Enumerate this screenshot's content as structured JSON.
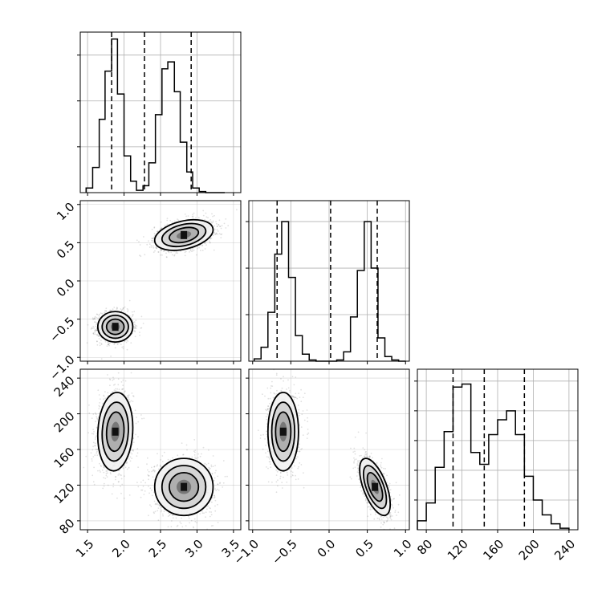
{
  "chart_data": {
    "type": "corner",
    "parameters": [
      {
        "range": [
          1.4,
          3.6
        ],
        "ticks": [
          1.5,
          2.0,
          2.5,
          3.0,
          3.5
        ],
        "tick_labels": [
          "1.5",
          "2.0",
          "2.5",
          "3.0",
          "3.5"
        ],
        "quantiles": [
          1.83,
          2.28,
          2.92
        ],
        "histogram": {
          "edges": [
            1.48,
            1.57,
            1.66,
            1.74,
            1.83,
            1.91,
            2.0,
            2.09,
            2.17,
            2.26,
            2.34,
            2.43,
            2.52,
            2.6,
            2.69,
            2.77,
            2.86,
            2.94,
            3.03,
            3.12,
            3.2,
            3.29,
            3.38
          ],
          "counts": [
            0.2,
            1.1,
            3.2,
            5.3,
            6.7,
            4.3,
            1.6,
            0.5,
            0.1,
            0.3,
            1.3,
            3.4,
            5.4,
            5.7,
            4.4,
            2.2,
            0.9,
            0.2,
            0.05,
            0.0,
            0.0,
            0.0
          ]
        },
        "hist_ylim": [
          0,
          7.0
        ],
        "hist_ticks": [
          2.0,
          4.0,
          6.0
        ]
      },
      {
        "range": [
          -1.05,
          1.05
        ],
        "ticks": [
          -1.0,
          -0.5,
          0.0,
          0.5,
          1.0
        ],
        "tick_labels": [
          "−1.0",
          "−0.5",
          "0.0",
          "0.5",
          "1.0"
        ],
        "quantiles": [
          -0.68,
          0.02,
          0.63
        ],
        "histogram": {
          "edges": [
            -0.98,
            -0.89,
            -0.8,
            -0.71,
            -0.62,
            -0.53,
            -0.44,
            -0.35,
            -0.26,
            -0.17,
            -0.08,
            0.01,
            0.1,
            0.19,
            0.28,
            0.37,
            0.46,
            0.55,
            0.64,
            0.73,
            0.82,
            0.91,
            1.0
          ],
          "counts": [
            0.1,
            0.6,
            2.1,
            4.6,
            6.0,
            3.6,
            1.1,
            0.3,
            0.05,
            0.0,
            0.0,
            0.0,
            0.05,
            0.4,
            1.9,
            3.9,
            6.0,
            4.0,
            1.0,
            0.2,
            0.05,
            0.0
          ]
        },
        "hist_ylim": [
          0,
          6.9
        ],
        "hist_ticks": [
          2.0,
          4.0,
          6.0
        ]
      },
      {
        "range": [
          70,
          250
        ],
        "ticks": [
          80,
          120,
          160,
          200,
          240
        ],
        "tick_labels": [
          "80",
          "120",
          "160",
          "200",
          "240"
        ],
        "quantiles": [
          110,
          145,
          190
        ],
        "histogram": {
          "edges": [
            70,
            80,
            90,
            100,
            110,
            120,
            130,
            140,
            150,
            160,
            170,
            180,
            190,
            200,
            210,
            220,
            230,
            240
          ],
          "counts": [
            0.3,
            0.9,
            2.1,
            3.3,
            4.8,
            4.9,
            2.6,
            2.2,
            3.2,
            3.7,
            4.0,
            3.2,
            1.8,
            1.0,
            0.5,
            0.2,
            0.05
          ]
        },
        "hist_ylim": [
          0,
          5.4
        ],
        "hist_ticks": [
          1.0,
          2.0,
          3.0,
          4.0,
          5.0
        ]
      }
    ],
    "clusters": [
      {
        "center": [
          1.88,
          -0.6,
          180
        ],
        "sigma": [
          0.12,
          0.1,
          22
        ],
        "corr01": 0.0,
        "corr02": 0.1,
        "corr12": 0.0,
        "weight": 0.5
      },
      {
        "center": [
          2.82,
          0.6,
          118
        ],
        "sigma": [
          0.2,
          0.1,
          16
        ],
        "corr01": 0.35,
        "corr02": 0.0,
        "corr12": -0.6,
        "weight": 0.5
      }
    ],
    "grid": "on",
    "line_style_quantiles": "dashed",
    "colors": {
      "line": "#000000",
      "grid": "#b0b0b0",
      "scatter": "#000000"
    }
  }
}
